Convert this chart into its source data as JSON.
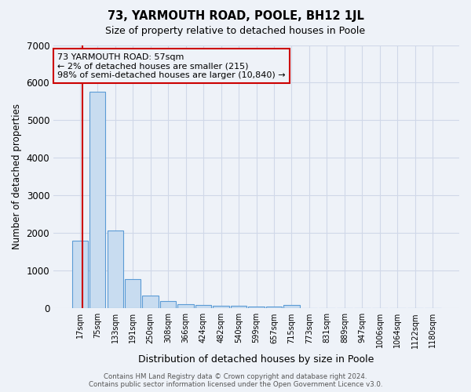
{
  "title": "73, YARMOUTH ROAD, POOLE, BH12 1JL",
  "subtitle": "Size of property relative to detached houses in Poole",
  "xlabel": "Distribution of detached houses by size in Poole",
  "ylabel": "Number of detached properties",
  "categories": [
    "17sqm",
    "75sqm",
    "133sqm",
    "191sqm",
    "250sqm",
    "308sqm",
    "366sqm",
    "424sqm",
    "482sqm",
    "540sqm",
    "599sqm",
    "657sqm",
    "715sqm",
    "773sqm",
    "831sqm",
    "889sqm",
    "947sqm",
    "1006sqm",
    "1064sqm",
    "1122sqm",
    "1180sqm"
  ],
  "values": [
    1800,
    5750,
    2070,
    780,
    340,
    200,
    110,
    85,
    75,
    60,
    50,
    40,
    95,
    0,
    0,
    0,
    0,
    0,
    0,
    0,
    0
  ],
  "bar_color": "#c8dcf0",
  "bar_edge_color": "#5b9bd5",
  "grid_color": "#d0d8e8",
  "bg_color": "#eef2f8",
  "annotation_box_color": "#cc0000",
  "annotation_text_line1": "73 YARMOUTH ROAD: 57sqm",
  "annotation_text_line2": "← 2% of detached houses are smaller (215)",
  "annotation_text_line3": "98% of semi-detached houses are larger (10,840) →",
  "ylim": [
    0,
    7000
  ],
  "yticks": [
    0,
    1000,
    2000,
    3000,
    4000,
    5000,
    6000,
    7000
  ],
  "footer_line1": "Contains HM Land Registry data © Crown copyright and database right 2024.",
  "footer_line2": "Contains public sector information licensed under the Open Government Licence v3.0."
}
